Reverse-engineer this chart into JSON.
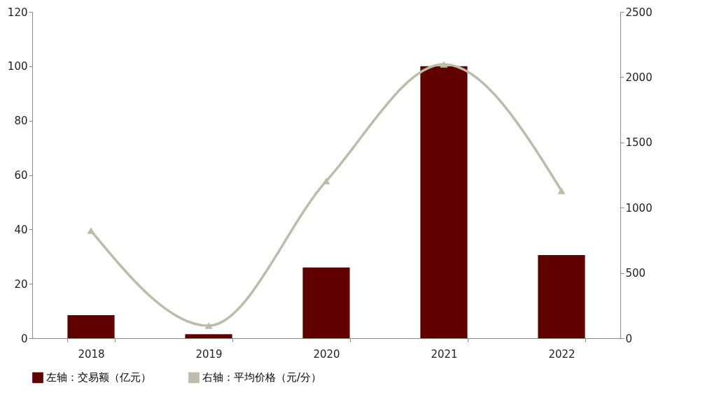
{
  "chart_data": {
    "type": "bar",
    "categories": [
      "2018",
      "2019",
      "2020",
      "2021",
      "2022"
    ],
    "series": [
      {
        "name": "左轴：交易额（亿元）",
        "color": "#600000",
        "values": [
          8.5,
          1.5,
          26,
          100,
          30.6
        ]
      },
      {
        "name": "右轴：平均价格（元/分）",
        "color": "#bcbca8",
        "type": "line",
        "axis": "y2",
        "marker": "triangle",
        "values": [
          824,
          96,
          1204,
          2098,
          1130
        ]
      }
    ],
    "ylim": [
      0,
      120
    ],
    "yticks": [
      0,
      20,
      40,
      60,
      80,
      100,
      120
    ],
    "y2lim": [
      0,
      2500
    ],
    "y2ticks": [
      0,
      500,
      1000,
      1500,
      2000,
      2500
    ],
    "grid": false,
    "legend": "bottom"
  }
}
